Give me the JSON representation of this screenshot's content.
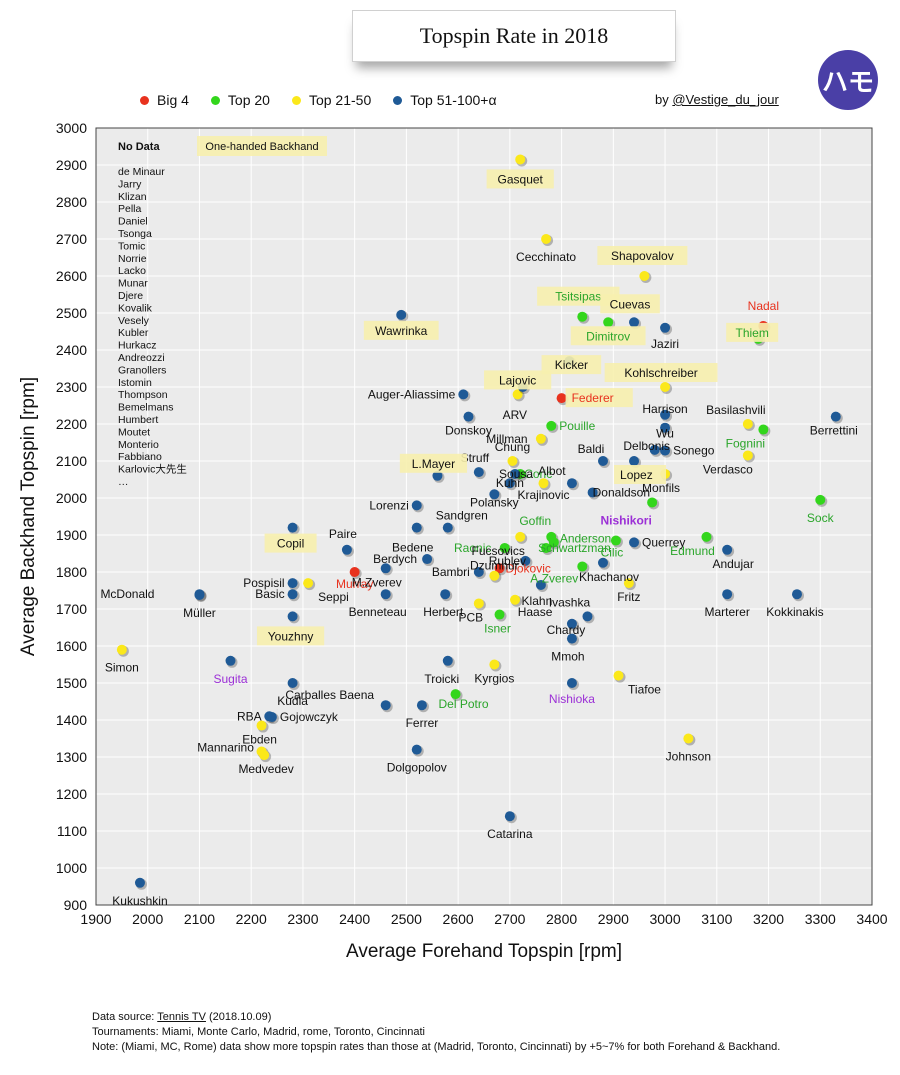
{
  "title": "Topspin Rate in 2018",
  "logo_text": "ハモ",
  "byline": {
    "prefix": "by ",
    "handle": "@Vestige_du_jour"
  },
  "legend": [
    {
      "label": "Big 4",
      "color": "#e8321e"
    },
    {
      "label": "Top 20",
      "color": "#33d61c"
    },
    {
      "label": "Top 21-50",
      "color": "#fbe81a"
    },
    {
      "label": "Top 51-100+α",
      "color": "#1f5a96"
    }
  ],
  "footer": {
    "source_prefix": "Data source: ",
    "source_link": "Tennis TV",
    "source_suffix": " (2018.10.09)",
    "tournaments": "Tournaments: Miami, Monte Carlo, Madrid, rome, Toronto, Cincinnati",
    "note": "Note: (Miami, MC, Rome) data show more topspin rates than those at (Madrid, Toronto, Cincinnati) by +5~7% for both Forehand & Backhand."
  },
  "chart_data": {
    "type": "scatter",
    "xlabel": "Average Forehand Topspin [rpm]",
    "ylabel": "Average Backhand Topspin [rpm]",
    "xlim": [
      1900,
      3400
    ],
    "ylim": [
      900,
      3000
    ],
    "xticks": [
      1900,
      2000,
      2100,
      2200,
      2300,
      2400,
      2500,
      2600,
      2700,
      2800,
      2900,
      3000,
      3100,
      3200,
      3300,
      3400
    ],
    "yticks": [
      900,
      1000,
      1100,
      1200,
      1300,
      1400,
      1500,
      1600,
      1700,
      1800,
      1900,
      2000,
      2100,
      2200,
      2300,
      2400,
      2500,
      2600,
      2700,
      2800,
      2900,
      3000
    ],
    "grid": true,
    "no_data_title": "No Data",
    "no_data_list": [
      "de Minaur",
      "Jarry",
      "Klizan",
      "Pella",
      "Daniel",
      "Tsonga",
      "Tomic",
      "Norrie",
      "Lacko",
      "Munar",
      "Djere",
      "Kovalik",
      "Vesely",
      "Kubler",
      "Hurkacz",
      "Andreozzi",
      "Granollers",
      "Istomin",
      "Thompson",
      "Bemelmans",
      "Humbert",
      "Moutet",
      "Monterio",
      "Fabbiano",
      "Karlovic大先生",
      "…"
    ],
    "one_handed_label": "One-handed Backhand",
    "points": [
      {
        "name": "Nadal",
        "x": 3190,
        "y": 2465,
        "group": "Big 4",
        "one_handed": false
      },
      {
        "name": "Federer",
        "x": 2800,
        "y": 2270,
        "group": "Big 4",
        "one_handed": true
      },
      {
        "name": "Djokovic",
        "x": 2680,
        "y": 1810,
        "group": "Big 4",
        "one_handed": false
      },
      {
        "name": "Murray",
        "x": 2400,
        "y": 1800,
        "group": "Big 4",
        "one_handed": false
      },
      {
        "name": "Thiem",
        "x": 3180,
        "y": 2430,
        "group": "Top 20",
        "one_handed": true
      },
      {
        "name": "Tsitsipas",
        "x": 2840,
        "y": 2490,
        "group": "Top 20",
        "one_handed": true
      },
      {
        "name": "Dimitrov",
        "x": 2890,
        "y": 2475,
        "group": "Top 20",
        "one_handed": true
      },
      {
        "name": "Pouille",
        "x": 2780,
        "y": 2195,
        "group": "Top 20",
        "one_handed": false
      },
      {
        "name": "Fognini",
        "x": 3190,
        "y": 2185,
        "group": "Top 20",
        "one_handed": false
      },
      {
        "name": "Coric",
        "x": 2720,
        "y": 2065,
        "group": "Top 20",
        "one_handed": false
      },
      {
        "name": "Sock",
        "x": 3300,
        "y": 1995,
        "group": "Top 20",
        "one_handed": false
      },
      {
        "name": "Nishikori",
        "x": 2975,
        "y": 1988,
        "group": "Top 20",
        "one_handed": false
      },
      {
        "name": "Goffin",
        "x": 2780,
        "y": 1895,
        "group": "Top 20",
        "one_handed": false
      },
      {
        "name": "Raonic",
        "x": 2690,
        "y": 1865,
        "group": "Top 20",
        "one_handed": false
      },
      {
        "name": "Anderson",
        "x": 2785,
        "y": 1880,
        "group": "Top 20",
        "one_handed": false
      },
      {
        "name": "Cilic",
        "x": 2905,
        "y": 1885,
        "group": "Top 20",
        "one_handed": false
      },
      {
        "name": "Schwartzman",
        "x": 2770,
        "y": 1865,
        "group": "Top 20",
        "one_handed": false
      },
      {
        "name": "Edmund",
        "x": 3080,
        "y": 1895,
        "group": "Top 20",
        "one_handed": false
      },
      {
        "name": "A.Zverev",
        "x": 2840,
        "y": 1815,
        "group": "Top 20",
        "one_handed": false
      },
      {
        "name": "Isner",
        "x": 2680,
        "y": 1685,
        "group": "Top 20",
        "one_handed": false
      },
      {
        "name": "Del Potro",
        "x": 2595,
        "y": 1470,
        "group": "Top 20",
        "one_handed": false
      },
      {
        "name": "Gasquet",
        "x": 2720,
        "y": 2915,
        "group": "Top 21-50",
        "one_handed": true
      },
      {
        "name": "Cecchinato",
        "x": 2770,
        "y": 2700,
        "group": "Top 21-50",
        "one_handed": false
      },
      {
        "name": "Shapovalov",
        "x": 2960,
        "y": 2600,
        "group": "Top 21-50",
        "one_handed": true
      },
      {
        "name": "Lajovic",
        "x": 2715,
        "y": 2280,
        "group": "Top 21-50",
        "one_handed": true
      },
      {
        "name": "Kohlschreiber",
        "x": 3000,
        "y": 2300,
        "group": "Top 21-50",
        "one_handed": true
      },
      {
        "name": "Basilashvili",
        "x": 3160,
        "y": 2200,
        "group": "Top 21-50",
        "one_handed": false
      },
      {
        "name": "Verdasco",
        "x": 3160,
        "y": 2115,
        "group": "Top 21-50",
        "one_handed": false
      },
      {
        "name": "Millman",
        "x": 2760,
        "y": 2160,
        "group": "Top 21-50",
        "one_handed": false
      },
      {
        "name": "Chung",
        "x": 2705,
        "y": 2100,
        "group": "Top 21-50",
        "one_handed": false
      },
      {
        "name": "Monfils",
        "x": 3000,
        "y": 2065,
        "group": "Top 21-50",
        "one_handed": false
      },
      {
        "name": "Krajinovic",
        "x": 2765,
        "y": 2040,
        "group": "Top 21-50",
        "one_handed": false
      },
      {
        "name": "Fucsovics",
        "x": 2720,
        "y": 1895,
        "group": "Top 21-50",
        "one_handed": false
      },
      {
        "name": "Dzumhur",
        "x": 2670,
        "y": 1790,
        "group": "Top 21-50",
        "one_handed": false
      },
      {
        "name": "Haase",
        "x": 2710,
        "y": 1725,
        "group": "Top 21-50",
        "one_handed": false
      },
      {
        "name": "PCB",
        "x": 2640,
        "y": 1715,
        "group": "Top 21-50",
        "one_handed": false
      },
      {
        "name": "Fritz",
        "x": 2930,
        "y": 1770,
        "group": "Top 21-50",
        "one_handed": false
      },
      {
        "name": "Seppi",
        "x": 2310,
        "y": 1770,
        "group": "Top 21-50",
        "one_handed": false
      },
      {
        "name": "Simon",
        "x": 1950,
        "y": 1590,
        "group": "Top 21-50",
        "one_handed": false
      },
      {
        "name": "Kyrgios",
        "x": 2670,
        "y": 1550,
        "group": "Top 21-50",
        "one_handed": false
      },
      {
        "name": "Tiafoe",
        "x": 2910,
        "y": 1520,
        "group": "Top 21-50",
        "one_handed": false
      },
      {
        "name": "Johnson",
        "x": 3045,
        "y": 1350,
        "group": "Top 21-50",
        "one_handed": false
      },
      {
        "name": "Ebden",
        "x": 2220,
        "y": 1385,
        "group": "Top 21-50",
        "one_handed": false
      },
      {
        "name": "Mannarino",
        "x": 2220,
        "y": 1315,
        "group": "Top 21-50",
        "one_handed": false
      },
      {
        "name": "Medvedev",
        "x": 2225,
        "y": 1305,
        "group": "Top 21-50",
        "one_handed": false
      },
      {
        "name": "Copil",
        "x": 2280,
        "y": 1920,
        "group": "Top 51-100+α",
        "one_handed": true
      },
      {
        "name": "Wawrinka",
        "x": 2490,
        "y": 2495,
        "group": "Top 51-100+α",
        "one_handed": true
      },
      {
        "name": "Cuevas",
        "x": 2940,
        "y": 2475,
        "group": "Top 51-100+α",
        "one_handed": true
      },
      {
        "name": "Jaziri",
        "x": 3000,
        "y": 2460,
        "group": "Top 51-100+α",
        "one_handed": false
      },
      {
        "name": "Kicker",
        "x": 2815,
        "y": 2370,
        "group": "Top 51-100+α",
        "one_handed": true
      },
      {
        "name": "ARV",
        "x": 2725,
        "y": 2300,
        "group": "Top 51-100+α",
        "one_handed": false
      },
      {
        "name": "Auger-Aliassime",
        "x": 2610,
        "y": 2280,
        "group": "Top 51-100+α",
        "one_handed": false
      },
      {
        "name": "Harrison",
        "x": 3000,
        "y": 2225,
        "group": "Top 51-100+α",
        "one_handed": false
      },
      {
        "name": "Berrettini",
        "x": 3330,
        "y": 2220,
        "group": "Top 51-100+α",
        "one_handed": false
      },
      {
        "name": "Donskoy",
        "x": 2620,
        "y": 2220,
        "group": "Top 51-100+α",
        "one_handed": false
      },
      {
        "name": "Wu",
        "x": 3000,
        "y": 2190,
        "group": "Top 51-100+α",
        "one_handed": false
      },
      {
        "name": "Delbonis",
        "x": 2980,
        "y": 2130,
        "group": "Top 51-100+α",
        "one_handed": false
      },
      {
        "name": "Sonego",
        "x": 3000,
        "y": 2128,
        "group": "Top 51-100+α",
        "one_handed": false
      },
      {
        "name": "Baldi",
        "x": 2880,
        "y": 2100,
        "group": "Top 51-100+α",
        "one_handed": false
      },
      {
        "name": "Lopez",
        "x": 2940,
        "y": 2100,
        "group": "Top 51-100+α",
        "one_handed": true
      },
      {
        "name": "Struff",
        "x": 2640,
        "y": 2070,
        "group": "Top 51-100+α",
        "one_handed": false
      },
      {
        "name": "Sousa",
        "x": 2710,
        "y": 2065,
        "group": "Top 51-100+α",
        "one_handed": false
      },
      {
        "name": "L.Mayer",
        "x": 2560,
        "y": 2060,
        "group": "Top 51-100+α",
        "one_handed": true
      },
      {
        "name": "Kuhn",
        "x": 2700,
        "y": 2040,
        "group": "Top 51-100+α",
        "one_handed": false
      },
      {
        "name": "Albot",
        "x": 2820,
        "y": 2040,
        "group": "Top 51-100+α",
        "one_handed": false
      },
      {
        "name": "Polansky",
        "x": 2670,
        "y": 2010,
        "group": "Top 51-100+α",
        "one_handed": false
      },
      {
        "name": "Donaldson",
        "x": 2860,
        "y": 2015,
        "group": "Top 51-100+α",
        "one_handed": false
      },
      {
        "name": "Lorenzi",
        "x": 2520,
        "y": 1980,
        "group": "Top 51-100+α",
        "one_handed": false
      },
      {
        "name": "Bedene",
        "x": 2520,
        "y": 1920,
        "group": "Top 51-100+α",
        "one_handed": false
      },
      {
        "name": "Sandgren",
        "x": 2580,
        "y": 1920,
        "group": "Top 51-100+α",
        "one_handed": false
      },
      {
        "name": "Querrey",
        "x": 2940,
        "y": 1880,
        "group": "Top 51-100+α",
        "one_handed": false
      },
      {
        "name": "Paire",
        "x": 2385,
        "y": 1860,
        "group": "Top 51-100+α",
        "one_handed": false
      },
      {
        "name": "Andujar",
        "x": 3120,
        "y": 1860,
        "group": "Top 51-100+α",
        "one_handed": false
      },
      {
        "name": "Berdych",
        "x": 2540,
        "y": 1835,
        "group": "Top 51-100+α",
        "one_handed": false
      },
      {
        "name": "Rublev",
        "x": 2730,
        "y": 1830,
        "group": "Top 51-100+α",
        "one_handed": false
      },
      {
        "name": "Khachanov",
        "x": 2880,
        "y": 1825,
        "group": "Top 51-100+α",
        "one_handed": false
      },
      {
        "name": "M.Zverev",
        "x": 2460,
        "y": 1810,
        "group": "Top 51-100+α",
        "one_handed": false
      },
      {
        "name": "Bambri",
        "x": 2640,
        "y": 1800,
        "group": "Top 51-100+α",
        "one_handed": false
      },
      {
        "name": "Klahn",
        "x": 2760,
        "y": 1765,
        "group": "Top 51-100+α",
        "one_handed": false
      },
      {
        "name": "Pospisil",
        "x": 2280,
        "y": 1770,
        "group": "Top 51-100+α",
        "one_handed": false
      },
      {
        "name": "Basic",
        "x": 2280,
        "y": 1740,
        "group": "Top 51-100+α",
        "one_handed": false
      },
      {
        "name": "McDonald",
        "x": 2100,
        "y": 1740,
        "group": "Top 51-100+α",
        "one_handed": false
      },
      {
        "name": "Müller",
        "x": 2100,
        "y": 1738,
        "group": "Top 51-100+α",
        "one_handed": false
      },
      {
        "name": "Benneteau",
        "x": 2460,
        "y": 1740,
        "group": "Top 51-100+α",
        "one_handed": false
      },
      {
        "name": "Herbert",
        "x": 2575,
        "y": 1740,
        "group": "Top 51-100+α",
        "one_handed": false
      },
      {
        "name": "Marterer",
        "x": 3120,
        "y": 1740,
        "group": "Top 51-100+α",
        "one_handed": false
      },
      {
        "name": "Kokkinakis",
        "x": 3255,
        "y": 1740,
        "group": "Top 51-100+α",
        "one_handed": false
      },
      {
        "name": "Ivashka",
        "x": 2850,
        "y": 1680,
        "group": "Top 51-100+α",
        "one_handed": false
      },
      {
        "name": "Youzhny",
        "x": 2280,
        "y": 1680,
        "group": "Top 51-100+α",
        "one_handed": true
      },
      {
        "name": "Chardy",
        "x": 2820,
        "y": 1660,
        "group": "Top 51-100+α",
        "one_handed": false
      },
      {
        "name": "Mmoh",
        "x": 2820,
        "y": 1620,
        "group": "Top 51-100+α",
        "one_handed": false
      },
      {
        "name": "Troicki",
        "x": 2580,
        "y": 1560,
        "group": "Top 51-100+α",
        "one_handed": false
      },
      {
        "name": "Sugita",
        "x": 2160,
        "y": 1560,
        "group": "Top 51-100+α",
        "one_handed": false
      },
      {
        "name": "Kudla",
        "x": 2280,
        "y": 1500,
        "group": "Top 51-100+α",
        "one_handed": false
      },
      {
        "name": "Nishioka",
        "x": 2820,
        "y": 1500,
        "group": "Top 51-100+α",
        "one_handed": false
      },
      {
        "name": "Carballes Baena",
        "x": 2460,
        "y": 1440,
        "group": "Top 51-100+α",
        "one_handed": false
      },
      {
        "name": "Ferrer",
        "x": 2530,
        "y": 1440,
        "group": "Top 51-100+α",
        "one_handed": false
      },
      {
        "name": "RBA",
        "x": 2235,
        "y": 1410,
        "group": "Top 51-100+α",
        "one_handed": false
      },
      {
        "name": "Gojowczyk",
        "x": 2240,
        "y": 1408,
        "group": "Top 51-100+α",
        "one_handed": false
      },
      {
        "name": "Dolgopolov",
        "x": 2520,
        "y": 1320,
        "group": "Top 51-100+α",
        "one_handed": false
      },
      {
        "name": "Catarina",
        "x": 2700,
        "y": 1140,
        "group": "Top 51-100+α",
        "one_handed": false
      },
      {
        "name": "Kukushkin",
        "x": 1985,
        "y": 960,
        "group": "Top 51-100+α",
        "one_handed": false
      }
    ]
  }
}
